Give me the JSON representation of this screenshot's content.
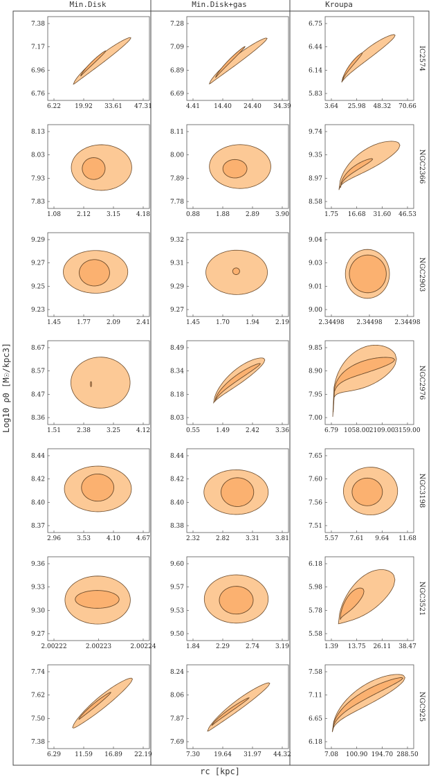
{
  "columns": [
    "Min.Disk",
    "Min.Disk+gas",
    "Kroupa"
  ],
  "xlabel": "rc [kpc]",
  "ylabel": "Log10 ρ0 [M☉/kpc3]",
  "colors": {
    "outer": "#fcc996",
    "inner": "#fbb170",
    "edge": "#6b4a2a",
    "frame": "#555555"
  },
  "chart_data": [
    {
      "galaxy": "IC2574",
      "column": "Min.Disk",
      "type": "contour",
      "x_ticks": [
        "6.22",
        "19.92",
        "33.61",
        "47.31"
      ],
      "y_ticks": [
        "6.76",
        "6.96",
        "7.17",
        "7.38"
      ],
      "xlim": [
        0,
        52
      ],
      "ylim": [
        6.7,
        7.45
      ],
      "outer": {
        "kind": "band",
        "xs": [
          12,
          44
        ],
        "ys": [
          6.82,
          7.28
        ],
        "p": 0.85,
        "w": 0.01
      },
      "inner": {
        "kind": "band",
        "xs": [
          16,
          30
        ],
        "ys": [
          6.9,
          7.15
        ],
        "p": 0.85,
        "w": 0.007
      }
    },
    {
      "galaxy": "IC2574",
      "column": "Min.Disk+gas",
      "type": "contour",
      "x_ticks": [
        "4.41",
        "14.40",
        "24.40",
        "34.39"
      ],
      "y_ticks": [
        "6.69",
        "6.89",
        "7.09",
        "7.28"
      ],
      "xlim": [
        0,
        38
      ],
      "ylim": [
        6.62,
        7.35
      ],
      "outer": {
        "kind": "band",
        "xs": [
          7.5,
          31
        ],
        "ys": [
          6.74,
          7.18
        ],
        "p": 0.85,
        "w": 0.01
      },
      "inner": {
        "kind": "band",
        "xs": [
          10,
          22
        ],
        "ys": [
          6.8,
          7.1
        ],
        "p": 0.85,
        "w": 0.006
      }
    },
    {
      "galaxy": "IC2574",
      "column": "Kroupa",
      "type": "contour",
      "x_ticks": [
        "3.64",
        "25.98",
        "48.32",
        "70.66"
      ],
      "y_ticks": [
        "5.83",
        "6.14",
        "6.44",
        "6.75"
      ],
      "xlim": [
        0,
        78
      ],
      "ylim": [
        5.72,
        6.86
      ],
      "outer": {
        "kind": "band",
        "xs": [
          12,
          64
        ],
        "ys": [
          5.93,
          6.64
        ],
        "p": 0.7,
        "w": 0.012
      },
      "inner": {
        "kind": "band",
        "xs": [
          13,
          32
        ],
        "ys": [
          5.96,
          6.37
        ],
        "p": 0.7,
        "w": 0.008
      }
    },
    {
      "galaxy": "NGC2366",
      "column": "Min.Disk",
      "type": "contour",
      "x_ticks": [
        "1.08",
        "2.12",
        "3.15",
        "4.18"
      ],
      "y_ticks": [
        "7.83",
        "7.93",
        "8.03",
        "8.13"
      ],
      "xlim": [
        0.5,
        4.5
      ],
      "ylim": [
        7.79,
        8.17
      ],
      "outer": {
        "kind": "ellipse",
        "x": [
          1.33,
          3.92
        ],
        "y": [
          7.86,
          8.09
        ],
        "t": 0.1
      },
      "inner": {
        "kind": "ellipse",
        "x": [
          1.8,
          2.78
        ],
        "y": [
          7.915,
          8.025
        ],
        "t": 0.25
      }
    },
    {
      "galaxy": "NGC2366",
      "column": "Min.Disk+gas",
      "type": "contour",
      "x_ticks": [
        "0.88",
        "1.88",
        "2.89",
        "3.90"
      ],
      "y_ticks": [
        "7.78",
        "7.89",
        "8.00",
        "8.11"
      ],
      "xlim": [
        0.4,
        4.2
      ],
      "ylim": [
        7.73,
        8.16
      ],
      "outer": {
        "kind": "ellipse",
        "x": [
          1.15,
          3.65
        ],
        "y": [
          7.82,
          8.07
        ],
        "t": 0.1
      },
      "inner": {
        "kind": "ellipse",
        "x": [
          1.7,
          2.68
        ],
        "y": [
          7.88,
          7.985
        ],
        "t": 0.25
      }
    },
    {
      "galaxy": "NGC2366",
      "column": "Kroupa",
      "type": "contour",
      "x_ticks": [
        "1.75",
        "16.68",
        "31.60",
        "46.53"
      ],
      "y_ticks": [
        "8.58",
        "8.97",
        "9.35",
        "9.74"
      ],
      "xlim": [
        0,
        50
      ],
      "ylim": [
        8.45,
        9.87
      ],
      "outer": {
        "kind": "band",
        "xs": [
          6,
          44
        ],
        "ys": [
          8.72,
          9.56
        ],
        "p": 0.5,
        "w": 0.025
      },
      "inner": {
        "kind": "band",
        "xs": [
          7,
          27
        ],
        "ys": [
          8.76,
          9.3
        ],
        "p": 0.5,
        "w": 0.01
      }
    },
    {
      "galaxy": "NGC2903",
      "column": "Min.Disk",
      "type": "contour",
      "x_ticks": [
        "1.45",
        "1.77",
        "2.09",
        "2.41"
      ],
      "y_ticks": [
        "9.23",
        "9.25",
        "9.27",
        "9.29"
      ],
      "xlim": [
        1.3,
        2.53
      ],
      "ylim": [
        9.215,
        9.298
      ],
      "outer": {
        "kind": "ellipse",
        "x": [
          1.45,
          2.3
        ],
        "y": [
          9.236,
          9.283
        ],
        "t": 0.12
      },
      "inner": {
        "kind": "ellipse",
        "x": [
          1.66,
          2.06
        ],
        "y": [
          9.244,
          9.273
        ],
        "t": 0.3
      }
    },
    {
      "galaxy": "NGC2903",
      "column": "Min.Disk+gas",
      "type": "contour",
      "x_ticks": [
        "1.45",
        "1.70",
        "1.94",
        "2.19"
      ],
      "y_ticks": [
        "9.27",
        "9.29",
        "9.31",
        "9.32"
      ],
      "xlim": [
        1.33,
        2.27
      ],
      "ylim": [
        9.262,
        9.33
      ],
      "outer": {
        "kind": "ellipse",
        "x": [
          1.48,
          2.1
        ],
        "y": [
          9.278,
          9.318
        ],
        "t": 0.1
      },
      "inner": {
        "kind": "ellipse",
        "x": [
          1.75,
          1.82
        ],
        "y": [
          9.296,
          9.302
        ],
        "t": 0.2
      }
    },
    {
      "galaxy": "NGC2903",
      "column": "Kroupa",
      "type": "contour",
      "x_ticks": [
        "2.34498",
        "2.34498",
        "2.34498"
      ],
      "y_ticks": [
        "9.00",
        "9.01",
        "9.03",
        "9.04"
      ],
      "xlim": [
        0,
        1
      ],
      "ylim": [
        8.993,
        9.047
      ],
      "outer": {
        "kind": "ellipse",
        "x": [
          0.2,
          0.75
        ],
        "y": [
          9.003,
          9.038
        ],
        "t": 0
      },
      "inner": {
        "kind": "ellipse",
        "x": [
          0.25,
          0.71
        ],
        "y": [
          9.007,
          9.034
        ],
        "t": 0
      }
    },
    {
      "galaxy": "NGC2976",
      "column": "Min.Disk",
      "type": "contour",
      "x_ticks": [
        "1.51",
        "2.38",
        "3.25",
        "4.12"
      ],
      "y_ticks": [
        "8.36",
        "8.47",
        "8.57",
        "8.67"
      ],
      "xlim": [
        1.2,
        4.4
      ],
      "ylim": [
        8.33,
        8.7
      ],
      "outer": {
        "kind": "ellipse",
        "x": [
          1.85,
          3.88
        ],
        "y": [
          8.39,
          8.64
        ],
        "t": 0.03
      },
      "inner": {
        "kind": "ellipse",
        "x": [
          2.52,
          2.56
        ],
        "y": [
          8.495,
          8.52
        ],
        "t": 0
      }
    },
    {
      "galaxy": "NGC2976",
      "column": "Min.Disk+gas",
      "type": "contour",
      "x_ticks": [
        "0.55",
        "1.49",
        "2.42",
        "3.36"
      ],
      "y_ticks": [
        "8.03",
        "8.18",
        "8.34",
        "8.49"
      ],
      "xlim": [
        0.2,
        3.7
      ],
      "ylim": [
        7.96,
        8.56
      ],
      "outer": {
        "kind": "band",
        "xs": [
          1.05,
          2.97
        ],
        "ys": [
          8.1,
          8.44
        ],
        "p": 0.65,
        "w": 0.02
      },
      "inner": {
        "kind": "band",
        "xs": [
          1.1,
          2.8
        ],
        "ys": [
          8.11,
          8.41
        ],
        "p": 0.65,
        "w": 0.008
      }
    },
    {
      "galaxy": "NGC2976",
      "column": "Kroupa",
      "type": "contour",
      "x_ticks": [
        "6.79",
        "1058.00",
        "2109.00",
        "3159.00"
      ],
      "y_ticks": [
        "7.00",
        "7.95",
        "8.90",
        "9.85"
      ],
      "xlim": [
        -150,
        3350
      ],
      "ylim": [
        6.85,
        10.05
      ],
      "outer": {
        "kind": "band",
        "xs": [
          0,
          2780
        ],
        "ys": [
          7.0,
          9.45
        ],
        "p": 0.22,
        "w": 0.035
      },
      "inner": {
        "kind": "band",
        "xs": [
          20,
          2700
        ],
        "ys": [
          7.2,
          9.42
        ],
        "p": 0.22,
        "w": 0.012
      }
    },
    {
      "galaxy": "NGC3198",
      "column": "Min.Disk",
      "type": "contour",
      "x_ticks": [
        "2.96",
        "3.53",
        "4.10",
        "4.67"
      ],
      "y_ticks": [
        "8.37",
        "8.40",
        "8.42",
        "8.44"
      ],
      "xlim": [
        2.78,
        4.8
      ],
      "ylim": [
        8.362,
        8.448
      ],
      "outer": {
        "kind": "ellipse",
        "x": [
          3.05,
          4.5
        ],
        "y": [
          8.381,
          8.433
        ],
        "t": 0.1
      },
      "inner": {
        "kind": "ellipse",
        "x": [
          3.42,
          4.12
        ],
        "y": [
          8.393,
          8.424
        ],
        "t": 0.23
      }
    },
    {
      "galaxy": "NGC3198",
      "column": "Min.Disk+gas",
      "type": "contour",
      "x_ticks": [
        "2.32",
        "2.82",
        "3.31",
        "3.81"
      ],
      "y_ticks": [
        "8.38",
        "8.40",
        "8.42",
        "8.44"
      ],
      "xlim": [
        2.17,
        3.97
      ],
      "ylim": [
        8.372,
        8.448
      ],
      "outer": {
        "kind": "ellipse",
        "x": [
          2.42,
          3.66
        ],
        "y": [
          8.386,
          8.431
        ],
        "t": 0.1
      },
      "inner": {
        "kind": "ellipse",
        "x": [
          2.75,
          3.38
        ],
        "y": [
          8.394,
          8.423
        ],
        "t": 0.22
      }
    },
    {
      "galaxy": "NGC3198",
      "column": "Kroupa",
      "type": "contour",
      "x_ticks": [
        "5.57",
        "7.61",
        "9.64",
        "11.68"
      ],
      "y_ticks": [
        "7.51",
        "7.56",
        "7.60",
        "7.65"
      ],
      "xlim": [
        4.9,
        12.3
      ],
      "ylim": [
        7.49,
        7.67
      ],
      "outer": {
        "kind": "ellipse",
        "x": [
          6.2,
          11.2
        ],
        "y": [
          7.522,
          7.636
        ],
        "t": 0.08
      },
      "inner": {
        "kind": "ellipse",
        "x": [
          7.0,
          9.8
        ],
        "y": [
          7.544,
          7.61
        ],
        "t": 0.18
      }
    },
    {
      "galaxy": "NGC3521",
      "column": "Min.Disk",
      "type": "contour",
      "x_ticks": [
        "2.00222",
        "2.00223",
        "2.00224"
      ],
      "y_ticks": [
        "9.27",
        "9.30",
        "9.33",
        "9.36"
      ],
      "xlim": [
        0,
        1
      ],
      "ylim": [
        9.262,
        9.372
      ],
      "outer": {
        "kind": "ellipse",
        "x": [
          0.14,
          0.84
        ],
        "y": [
          9.28,
          9.35
        ],
        "t": 0
      },
      "inner": {
        "kind": "ellipse",
        "x": [
          0.25,
          0.72
        ],
        "y": [
          9.303,
          9.329
        ],
        "t": 0
      }
    },
    {
      "galaxy": "NGC3521",
      "column": "Min.Disk+gas",
      "type": "contour",
      "x_ticks": [
        "1.84",
        "2.29",
        "2.74",
        "3.19"
      ],
      "y_ticks": [
        "9.50",
        "9.53",
        "9.57",
        "9.60"
      ],
      "xlim": [
        1.66,
        3.34
      ],
      "ylim": [
        9.49,
        9.615
      ],
      "outer": {
        "kind": "ellipse",
        "x": [
          1.9,
          3.05
        ],
        "y": [
          9.512,
          9.592
        ],
        "t": 0.1
      },
      "inner": {
        "kind": "ellipse",
        "x": [
          2.17,
          2.78
        ],
        "y": [
          9.527,
          9.573
        ],
        "t": 0.2
      }
    },
    {
      "galaxy": "NGC3521",
      "column": "Kroupa",
      "type": "contour",
      "x_ticks": [
        "1.39",
        "13.75",
        "26.11",
        "38.47"
      ],
      "y_ticks": [
        "5.58",
        "5.78",
        "5.98",
        "6.18"
      ],
      "xlim": [
        -2,
        42
      ],
      "ylim": [
        5.52,
        6.24
      ],
      "outer": {
        "kind": "band",
        "xs": [
          3,
          34
        ],
        "ys": [
          5.64,
          6.06
        ],
        "p": 0.55,
        "w": 0.045
      },
      "inner": {
        "kind": "band",
        "xs": [
          4,
          17
        ],
        "ys": [
          5.68,
          5.95
        ],
        "p": 0.55,
        "w": 0.03
      }
    },
    {
      "galaxy": "NGC925",
      "column": "Min.Disk",
      "type": "contour",
      "x_ticks": [
        "6.29",
        "11.59",
        "16.89",
        "22.19"
      ],
      "y_ticks": [
        "7.38",
        "7.50",
        "7.62",
        "7.74"
      ],
      "xlim": [
        4.5,
        23.5
      ],
      "ylim": [
        7.33,
        7.78
      ],
      "outer": {
        "kind": "band",
        "xs": [
          8.7,
          20.9
        ],
        "ys": [
          7.43,
          7.72
        ],
        "p": 0.9,
        "w": 0.015
      },
      "inner": {
        "kind": "band",
        "xs": [
          10,
          16.5
        ],
        "ys": [
          7.48,
          7.64
        ],
        "p": 0.9,
        "w": 0.008
      }
    },
    {
      "galaxy": "NGC925",
      "column": "Min.Disk+gas",
      "type": "contour",
      "x_ticks": [
        "7.30",
        "19.64",
        "31.97",
        "44.32"
      ],
      "y_ticks": [
        "7.69",
        "7.87",
        "8.06",
        "8.24"
      ],
      "xlim": [
        3,
        48
      ],
      "ylim": [
        7.63,
        8.31
      ],
      "outer": {
        "kind": "band",
        "xs": [
          11,
          41
        ],
        "ys": [
          7.75,
          8.18
        ],
        "p": 0.85,
        "w": 0.012
      },
      "inner": {
        "kind": "band",
        "xs": [
          13,
          31
        ],
        "ys": [
          7.8,
          8.05
        ],
        "p": 0.85,
        "w": 0.006
      }
    },
    {
      "galaxy": "NGC925",
      "column": "Kroupa",
      "type": "contour",
      "x_ticks": [
        "7.08",
        "100.90",
        "194.70",
        "288.50"
      ],
      "y_ticks": [
        "6.18",
        "6.65",
        "7.11",
        "7.58"
      ],
      "xlim": [
        0,
        300
      ],
      "ylim": [
        6.05,
        7.7
      ],
      "outer": {
        "kind": "band",
        "xs": [
          11,
          283
        ],
        "ys": [
          6.32,
          7.51
        ],
        "p": 0.5,
        "w": 0.02
      },
      "inner": {
        "kind": "band",
        "xs": [
          12,
          275
        ],
        "ys": [
          6.34,
          7.5
        ],
        "p": 0.5,
        "w": 0.008
      }
    }
  ]
}
